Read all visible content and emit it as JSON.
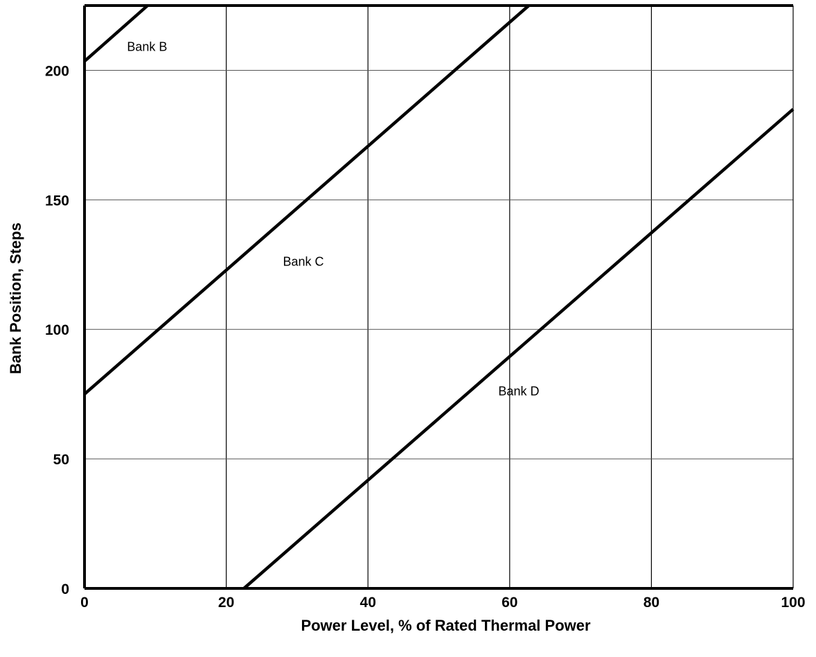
{
  "chart_data": {
    "type": "line",
    "title": "",
    "xlabel": "Power Level, % of Rated Thermal Power",
    "ylabel": "Bank Position, Steps",
    "xlim": [
      0,
      100
    ],
    "ylim": [
      0,
      225
    ],
    "x_ticks": [
      0,
      20,
      40,
      60,
      80,
      100
    ],
    "x_tick_labels": [
      "0",
      "20",
      "40",
      "60",
      "80",
      "100"
    ],
    "y_ticks": [
      0,
      50,
      100,
      150,
      200
    ],
    "y_tick_labels": [
      "0",
      "50",
      "100",
      "150",
      "200"
    ],
    "grid": true,
    "legend": "none",
    "series": [
      {
        "name": "Bank B",
        "x": [
          0,
          8.9
        ],
        "y": [
          203.5,
          225
        ]
      },
      {
        "name": "Bank C",
        "x": [
          0,
          62.7
        ],
        "y": [
          75,
          225
        ]
      },
      {
        "name": "Bank D",
        "x": [
          22.5,
          100
        ],
        "y": [
          0,
          185
        ]
      }
    ],
    "annotations": [
      {
        "text": "Bank B",
        "x": 6.0,
        "y": 207.5
      },
      {
        "text": "Bank C",
        "x": 28.0,
        "y": 124.5
      },
      {
        "text": "Bank D",
        "x": 58.4,
        "y": 74.5
      }
    ]
  }
}
